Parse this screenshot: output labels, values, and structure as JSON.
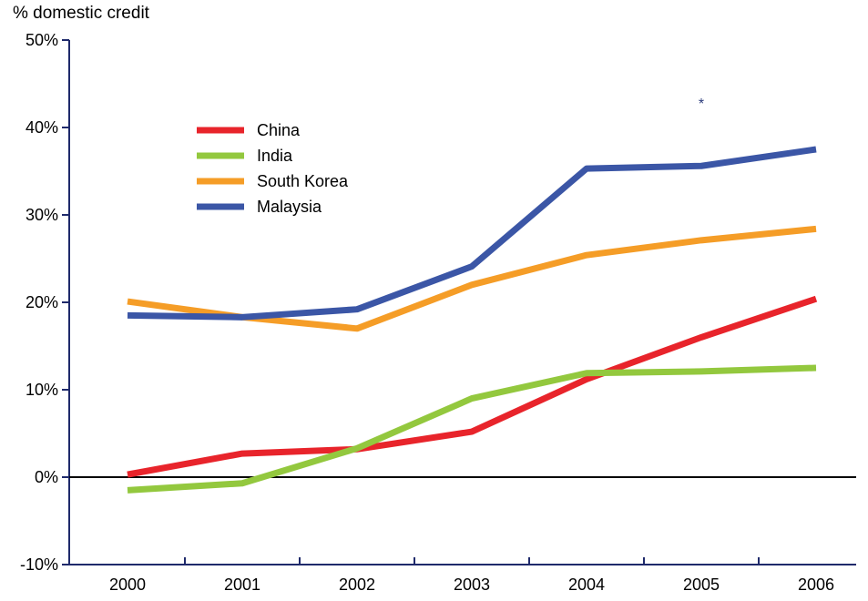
{
  "chart_data": {
    "type": "line",
    "title": "",
    "ylabel": "% domestic credit",
    "xlabel": "",
    "x": [
      "2000",
      "2001",
      "2002",
      "2003",
      "2004",
      "2005",
      "2006"
    ],
    "ylim": [
      -10,
      50
    ],
    "yticks": [
      -10,
      0,
      10,
      20,
      30,
      40,
      50
    ],
    "ytick_format": "%",
    "grid": false,
    "legend_position": "upper-left",
    "series": [
      {
        "name": "China",
        "color": "#e8242b",
        "values": [
          0.3,
          2.7,
          3.2,
          5.2,
          11.2,
          16.0,
          20.4
        ]
      },
      {
        "name": "India",
        "color": "#93c83e",
        "values": [
          -1.5,
          -0.7,
          3.3,
          9.0,
          11.9,
          12.1,
          12.5
        ]
      },
      {
        "name": "South Korea",
        "color": "#f59d27",
        "values": [
          20.1,
          18.3,
          17.0,
          22.0,
          25.4,
          27.1,
          28.4
        ]
      },
      {
        "name": "Malaysia",
        "color": "#3b56a6",
        "values": [
          18.5,
          18.3,
          19.2,
          24.1,
          35.3,
          35.6,
          37.5
        ]
      }
    ],
    "annotations": [
      {
        "text": "*",
        "x": 5.0,
        "y": 43.0,
        "color": "#2a3a7a"
      }
    ]
  }
}
